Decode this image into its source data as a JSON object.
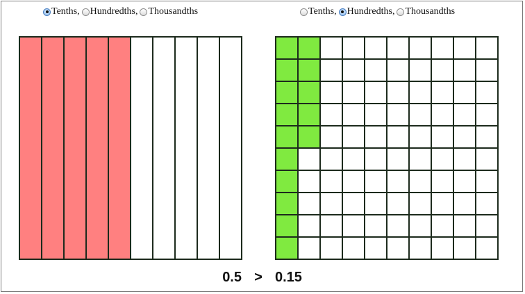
{
  "left": {
    "options": [
      {
        "label": "Tenths",
        "sep": ",",
        "checked": true
      },
      {
        "label": "Hundredths",
        "sep": ",",
        "checked": false
      },
      {
        "label": "Thousandths",
        "sep": "",
        "checked": false
      }
    ],
    "model": {
      "mode": "tenths",
      "shaded": 5,
      "fill_color": "#ff8080"
    }
  },
  "right": {
    "options": [
      {
        "label": "Tenths",
        "sep": ",",
        "checked": false
      },
      {
        "label": "Hundredths",
        "sep": ",",
        "checked": true
      },
      {
        "label": "Thousandths",
        "sep": "",
        "checked": false
      }
    ],
    "model": {
      "mode": "hundredths",
      "shaded": 15,
      "fill_color": "#80ea40"
    }
  },
  "comparison": {
    "left_value": "0.5",
    "operator": ">",
    "right_value": "0.15"
  },
  "grid_line_color": "#1c2a1c",
  "empty_color": "#ffffff"
}
